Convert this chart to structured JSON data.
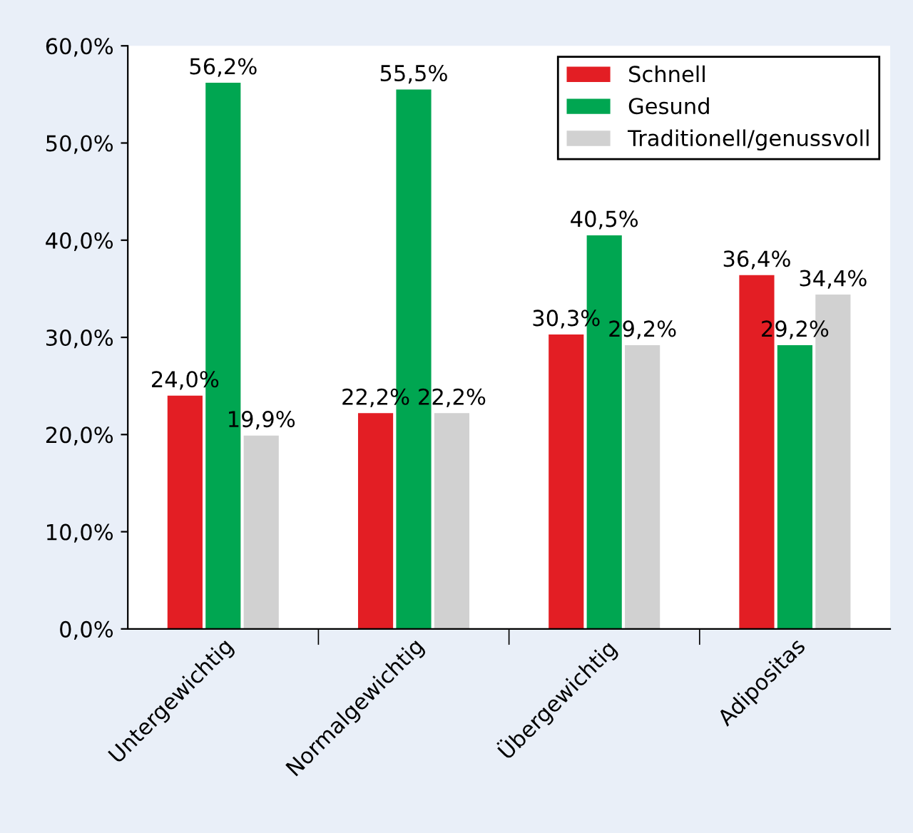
{
  "chart_data": {
    "type": "bar",
    "categories": [
      "Untergewichtig",
      "Normalgewichtig",
      "Übergewichtig",
      "Adipositas"
    ],
    "series": [
      {
        "name": "Schnell",
        "color": "#e31e24",
        "values": [
          24.0,
          22.2,
          30.3,
          36.4
        ],
        "value_labels": [
          "24,0%",
          "22,2%",
          "30,3%",
          "36,4%"
        ]
      },
      {
        "name": "Gesund",
        "color": "#00a651",
        "values": [
          56.2,
          55.5,
          40.5,
          29.2
        ],
        "value_labels": [
          "56,2%",
          "55,5%",
          "40,5%",
          "29,2%"
        ]
      },
      {
        "name": "Traditionell/genussvoll",
        "color": "#d1d1d1",
        "values": [
          19.9,
          22.2,
          29.2,
          34.4
        ],
        "value_labels": [
          "19,9%",
          "22,2%",
          "29,2%",
          "34,4%"
        ]
      }
    ],
    "ylim": [
      0,
      60
    ],
    "yticks": [
      {
        "value": 0,
        "label": "0,0%"
      },
      {
        "value": 10,
        "label": "10,0%"
      },
      {
        "value": 20,
        "label": "20,0%"
      },
      {
        "value": 30,
        "label": "30,0%"
      },
      {
        "value": 40,
        "label": "40,0%"
      },
      {
        "value": 50,
        "label": "50,0%"
      },
      {
        "value": 60,
        "label": "60,0%"
      }
    ],
    "legend": "top right",
    "grid": false
  }
}
